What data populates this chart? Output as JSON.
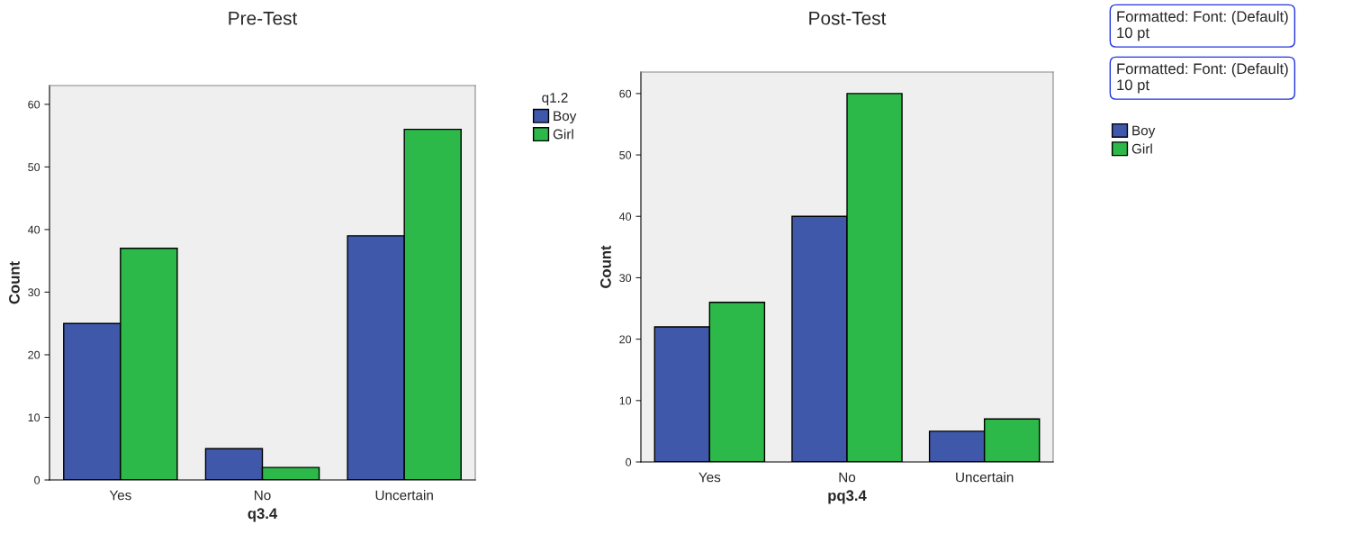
{
  "chart_data": [
    {
      "type": "bar",
      "title": "Pre-Test",
      "xlabel": "q3.4",
      "ylabel": "Count",
      "legend_title": "q1.2",
      "legend": "top right",
      "categories": [
        "Yes",
        "No",
        "Uncertain"
      ],
      "series": [
        {
          "name": "Boy",
          "color": "#3f58aa",
          "values": [
            25,
            5,
            39
          ]
        },
        {
          "name": "Girl",
          "color": "#2db84a",
          "values": [
            37,
            2,
            56
          ]
        }
      ],
      "ylim": [
        0,
        63
      ],
      "yticks": [
        0,
        10,
        20,
        30,
        40,
        50,
        60
      ]
    },
    {
      "type": "bar",
      "title": "Post-Test",
      "xlabel": "pq3.4",
      "ylabel": "Count",
      "legend": "top right",
      "categories": [
        "Yes",
        "No",
        "Uncertain"
      ],
      "series": [
        {
          "name": "Boy",
          "color": "#3f58aa",
          "values": [
            22,
            40,
            5
          ]
        },
        {
          "name": "Girl",
          "color": "#2db84a",
          "values": [
            26,
            60,
            7
          ]
        }
      ],
      "ylim": [
        0,
        63.5
      ],
      "yticks": [
        0,
        10,
        20,
        30,
        40,
        50,
        60
      ],
      "annotations": [
        "Formatted: Font: (Default)\n10 pt",
        "Formatted: Font: (Default)\n10 pt"
      ]
    }
  ]
}
